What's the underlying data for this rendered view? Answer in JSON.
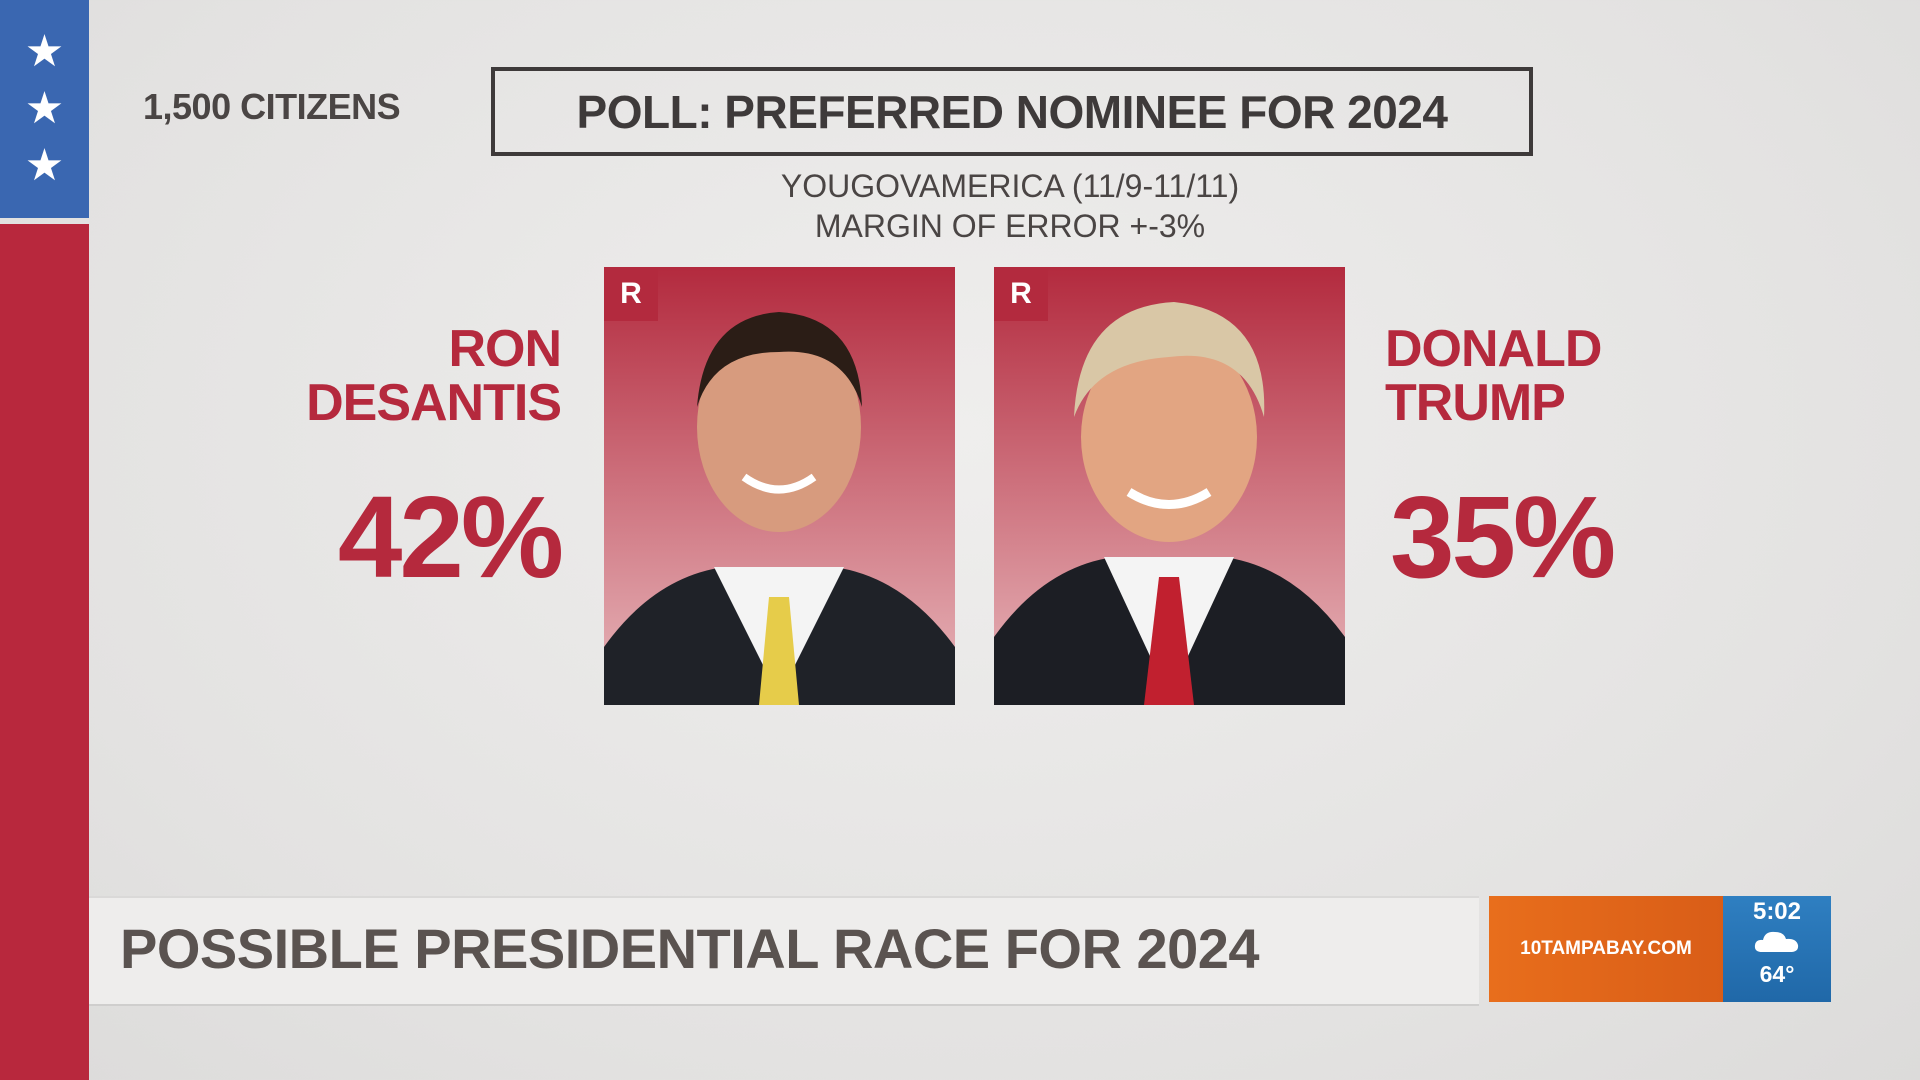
{
  "header": {
    "sample": "1,500 CITIZENS",
    "title": "POLL: PREFERRED NOMINEE FOR 2024",
    "source": "YOUGOVAMERICA (11/9-11/11)",
    "margin": "MARGIN OF ERROR +-3%"
  },
  "candidates": [
    {
      "name_lines": [
        "RON",
        "DESANTIS"
      ],
      "party": "R",
      "share": "42%"
    },
    {
      "name_lines": [
        "DONALD",
        "TRUMP"
      ],
      "party": "R",
      "share": "35%"
    }
  ],
  "lower_third": {
    "headline": "POSSIBLE PRESIDENTIAL RACE FOR 2024",
    "website": "10TAMPABAY.COM",
    "time": "5:02",
    "temperature": "64°"
  }
}
